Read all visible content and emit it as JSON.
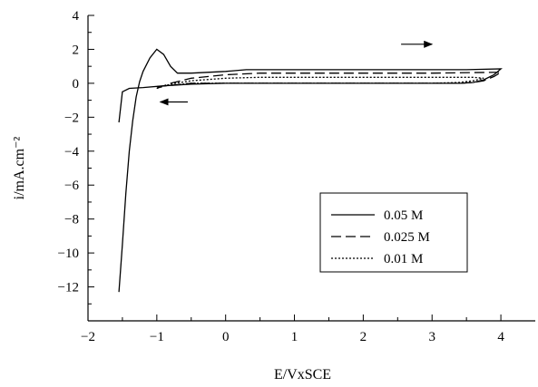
{
  "chart_data": {
    "type": "line",
    "xlabel": "E/VxSCE",
    "ylabel": "i/mA.cm⁻²",
    "xlim": [
      -2,
      4.5
    ],
    "ylim": [
      -14,
      4
    ],
    "xticks": [
      -2,
      -1,
      0,
      1,
      2,
      3,
      4
    ],
    "yticks": [
      -12,
      -10,
      -8,
      -6,
      -4,
      -2,
      0,
      2,
      4
    ],
    "xtick_labels": [
      "−2",
      "−1",
      "0",
      "1",
      "2",
      "3",
      "4"
    ],
    "ytick_labels": [
      "−12",
      "−10",
      "−8",
      "−6",
      "−4",
      "−2",
      "0",
      "2",
      "4"
    ],
    "legend_position": "center-right",
    "series": [
      {
        "name": "0.05 M",
        "dash": "solid",
        "points": [
          [
            -1.55,
            -12.3
          ],
          [
            -1.5,
            -9.5
          ],
          [
            -1.45,
            -6.5
          ],
          [
            -1.4,
            -4.0
          ],
          [
            -1.35,
            -2.2
          ],
          [
            -1.3,
            -0.8
          ],
          [
            -1.25,
            0.1
          ],
          [
            -1.2,
            0.7
          ],
          [
            -1.1,
            1.5
          ],
          [
            -1.0,
            2.0
          ],
          [
            -0.9,
            1.7
          ],
          [
            -0.8,
            1.0
          ],
          [
            -0.7,
            0.6
          ],
          [
            -0.5,
            0.6
          ],
          [
            0.0,
            0.7
          ],
          [
            0.3,
            0.8
          ],
          [
            1.0,
            0.8
          ],
          [
            2.0,
            0.8
          ],
          [
            3.0,
            0.8
          ],
          [
            3.5,
            0.8
          ],
          [
            4.0,
            0.85
          ],
          [
            3.9,
            0.5
          ],
          [
            3.75,
            0.2
          ],
          [
            3.6,
            0.05
          ],
          [
            3.4,
            0.0
          ],
          [
            2.0,
            0.0
          ],
          [
            1.0,
            0.0
          ],
          [
            0.0,
            0.0
          ],
          [
            -0.5,
            -0.05
          ],
          [
            -0.9,
            -0.15
          ],
          [
            -1.2,
            -0.25
          ],
          [
            -1.4,
            -0.3
          ],
          [
            -1.5,
            -0.5
          ],
          [
            -1.55,
            -2.3
          ]
        ]
      },
      {
        "name": "0.025 M",
        "dash": "long-dash",
        "points": [
          [
            -1.0,
            -0.3
          ],
          [
            -0.8,
            0.0
          ],
          [
            -0.5,
            0.3
          ],
          [
            0.0,
            0.5
          ],
          [
            0.5,
            0.6
          ],
          [
            1.0,
            0.6
          ],
          [
            2.0,
            0.6
          ],
          [
            3.0,
            0.6
          ],
          [
            4.0,
            0.65
          ],
          [
            3.9,
            0.4
          ],
          [
            3.75,
            0.15
          ],
          [
            3.6,
            0.05
          ],
          [
            3.4,
            0.0
          ],
          [
            2.0,
            0.0
          ],
          [
            1.0,
            0.0
          ],
          [
            0.0,
            0.0
          ],
          [
            -0.5,
            0.0
          ],
          [
            -1.0,
            -0.2
          ]
        ]
      },
      {
        "name": "0.01 M",
        "dash": "dotted",
        "points": [
          [
            -1.0,
            -0.3
          ],
          [
            -0.8,
            -0.05
          ],
          [
            -0.5,
            0.15
          ],
          [
            0.0,
            0.3
          ],
          [
            0.5,
            0.35
          ],
          [
            1.0,
            0.35
          ],
          [
            2.0,
            0.35
          ],
          [
            3.0,
            0.35
          ],
          [
            3.6,
            0.35
          ],
          [
            3.75,
            0.3
          ],
          [
            3.6,
            0.15
          ],
          [
            3.4,
            0.05
          ],
          [
            3.0,
            0.0
          ],
          [
            2.0,
            0.0
          ],
          [
            1.0,
            0.0
          ],
          [
            0.0,
            0.0
          ],
          [
            -0.5,
            0.0
          ],
          [
            -1.0,
            -0.2
          ]
        ]
      }
    ],
    "annotations": [
      {
        "type": "arrow",
        "direction": "right",
        "x": [
          2.55,
          3.0
        ],
        "y": 2.3
      },
      {
        "type": "arrow",
        "direction": "left",
        "x": [
          -0.55,
          -0.95
        ],
        "y": -1.1
      }
    ]
  }
}
